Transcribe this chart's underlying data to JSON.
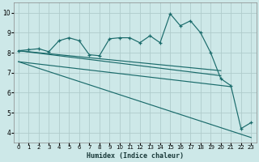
{
  "xlabel": "Humidex (Indice chaleur)",
  "bg_color": "#cde8e8",
  "grid_color": "#b0cccc",
  "line_color": "#1a6b6b",
  "x_ticks": [
    0,
    1,
    2,
    3,
    4,
    5,
    6,
    7,
    8,
    9,
    10,
    11,
    12,
    13,
    14,
    15,
    16,
    17,
    18,
    19,
    20,
    21,
    22,
    23
  ],
  "y_ticks": [
    4,
    5,
    6,
    7,
    8,
    9,
    10
  ],
  "xlim": [
    -0.5,
    23.5
  ],
  "ylim": [
    3.5,
    10.5
  ],
  "line_wiggly_x": [
    0,
    1,
    2,
    3,
    4,
    5,
    6,
    7,
    8,
    9,
    10,
    11,
    12,
    13,
    14,
    15,
    16,
    17,
    18,
    19,
    20,
    21,
    22,
    23
  ],
  "line_wiggly_y": [
    8.1,
    8.15,
    8.2,
    8.05,
    8.6,
    8.75,
    8.6,
    7.9,
    7.85,
    8.7,
    8.75,
    8.75,
    8.5,
    8.85,
    8.5,
    9.95,
    9.35,
    9.6,
    9.0,
    8.0,
    6.7,
    6.35,
    4.2,
    4.5
  ],
  "straight_lines": [
    {
      "x": [
        0,
        20
      ],
      "y": [
        8.1,
        6.85
      ]
    },
    {
      "x": [
        0,
        20
      ],
      "y": [
        8.1,
        7.1
      ]
    },
    {
      "x": [
        0,
        21
      ],
      "y": [
        7.55,
        6.3
      ]
    },
    {
      "x": [
        0,
        23
      ],
      "y": [
        7.55,
        3.75
      ]
    }
  ]
}
